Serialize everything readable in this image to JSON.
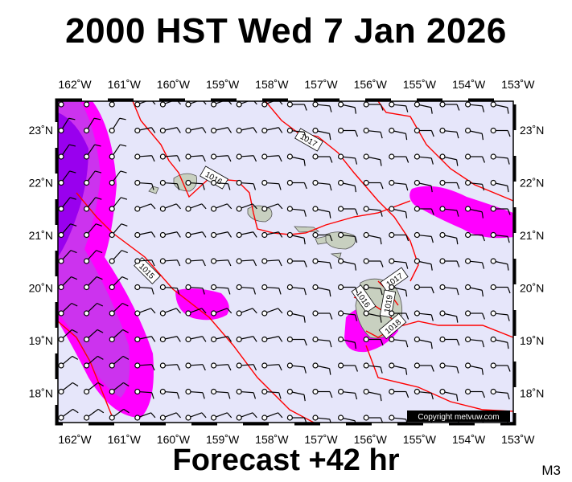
{
  "header": {
    "title": "2000 HST Wed 7 Jan 2026"
  },
  "footer": {
    "forecast": "Forecast +42 hr",
    "code": "M3"
  },
  "map": {
    "lon_labels": [
      "162˚W",
      "161˚W",
      "160˚W",
      "159˚W",
      "158˚W",
      "157˚W",
      "156˚W",
      "155˚W",
      "154˚W",
      "153˚W"
    ],
    "lat_labels": [
      "23˚N",
      "22˚N",
      "21˚N",
      "20˚N",
      "19˚N",
      "18˚N"
    ],
    "isobar_labels": [
      "1017",
      "1016",
      "1015",
      "1017",
      "1016",
      "1019",
      "1018"
    ],
    "copyright": "Copyright metvuw.com",
    "colors": {
      "background": "#e6e6fa",
      "isobar": "#ff0000",
      "rain_light": "#ff00ff",
      "rain_medium": "#cc33ee",
      "rain_heavy": "#9900ee",
      "land": "#c8d0c0"
    }
  }
}
